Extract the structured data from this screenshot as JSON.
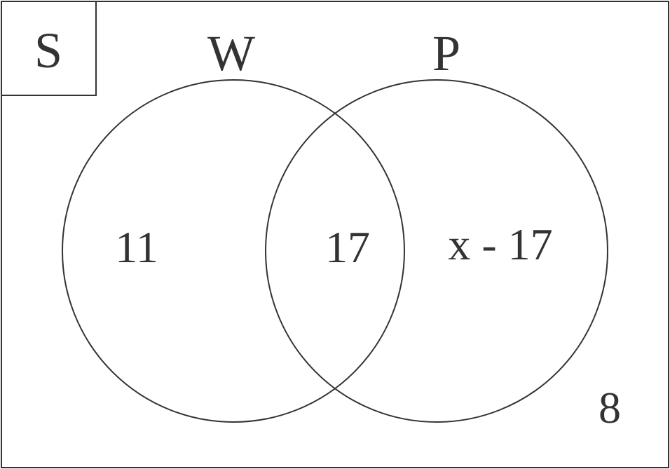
{
  "diagram": {
    "type": "venn",
    "universal_label": "S",
    "sets": [
      {
        "name": "W"
      },
      {
        "name": "P"
      }
    ],
    "regions": {
      "only_w": "11",
      "intersection": "17",
      "only_p": "x - 17",
      "outside": "8"
    },
    "colors": {
      "line": "#333333",
      "text": "#333333",
      "background": "#ffffff"
    }
  }
}
